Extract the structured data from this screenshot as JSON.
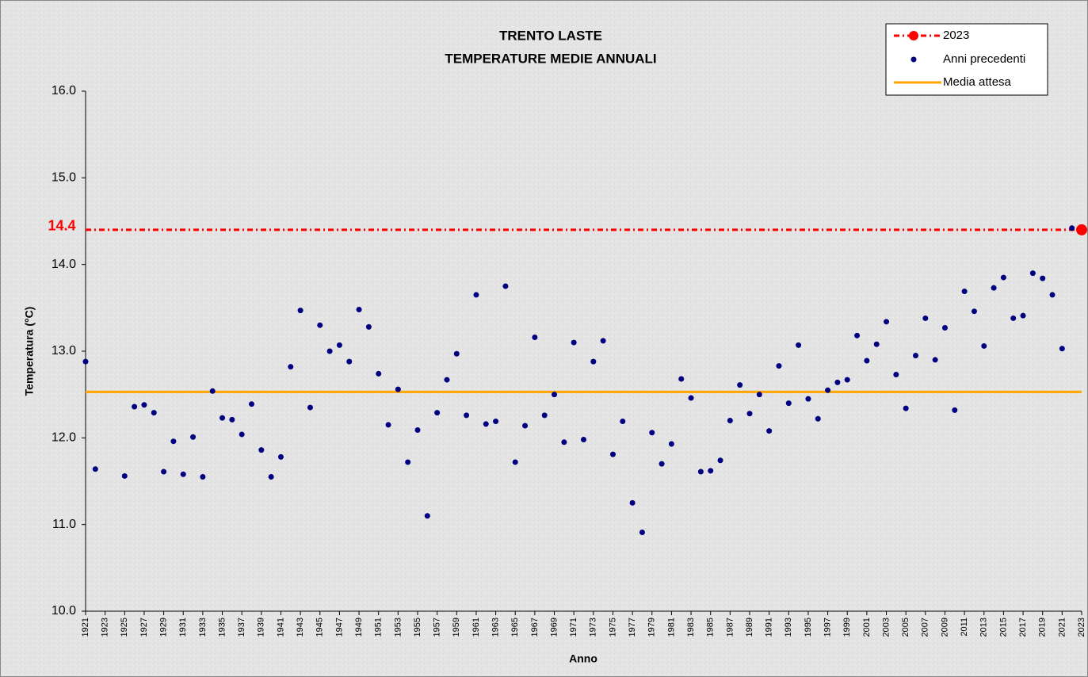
{
  "chart_data": {
    "type": "scatter",
    "title": "TRENTO LASTE",
    "subtitle": "TEMPERATURE MEDIE ANNUALI",
    "x_label": "Anno",
    "y_label": "Temperatura (°C)",
    "xlim": [
      1921,
      2023
    ],
    "ylim": [
      10,
      16
    ],
    "xticks": [
      1921,
      1923,
      1925,
      1927,
      1929,
      1931,
      1933,
      1935,
      1937,
      1939,
      1941,
      1943,
      1945,
      1947,
      1949,
      1951,
      1953,
      1955,
      1957,
      1959,
      1961,
      1963,
      1965,
      1967,
      1969,
      1971,
      1973,
      1975,
      1977,
      1979,
      1981,
      1983,
      1985,
      1987,
      1989,
      1991,
      1993,
      1995,
      1997,
      1999,
      2001,
      2003,
      2005,
      2007,
      2009,
      2011,
      2013,
      2015,
      2017,
      2019,
      2021,
      2023
    ],
    "yticks": [
      {
        "value": 10,
        "label": "10.0"
      },
      {
        "value": 11,
        "label": "11.0"
      },
      {
        "value": 12,
        "label": "12.0"
      },
      {
        "value": 13,
        "label": "13.0"
      },
      {
        "value": 14,
        "label": "14.0"
      },
      {
        "value": 15,
        "label": "15.0"
      },
      {
        "value": 16,
        "label": "16.0"
      }
    ],
    "series": [
      {
        "name": "Anni precedenti",
        "color": "#000080",
        "x": [
          1921,
          1922,
          1923,
          1924,
          1925,
          1926,
          1927,
          1928,
          1929,
          1930,
          1931,
          1932,
          1933,
          1934,
          1935,
          1936,
          1937,
          1938,
          1939,
          1940,
          1941,
          1942,
          1943,
          1944,
          1945,
          1946,
          1947,
          1948,
          1949,
          1950,
          1951,
          1952,
          1953,
          1954,
          1955,
          1956,
          1957,
          1958,
          1959,
          1960,
          1961,
          1962,
          1963,
          1964,
          1965,
          1966,
          1967,
          1968,
          1969,
          1970,
          1971,
          1972,
          1973,
          1974,
          1975,
          1976,
          1977,
          1978,
          1979,
          1980,
          1981,
          1982,
          1983,
          1984,
          1985,
          1986,
          1987,
          1988,
          1989,
          1990,
          1991,
          1992,
          1993,
          1994,
          1995,
          1996,
          1997,
          1998,
          1999,
          2000,
          2001,
          2002,
          2003,
          2004,
          2005,
          2006,
          2007,
          2008,
          2009,
          2010,
          2011,
          2012,
          2013,
          2014,
          2015,
          2016,
          2017,
          2018,
          2019,
          2020,
          2021,
          2022
        ],
        "values": [
          12.88,
          11.64,
          null,
          null,
          11.56,
          12.36,
          12.38,
          12.29,
          11.61,
          11.96,
          11.58,
          12.01,
          11.55,
          12.54,
          12.23,
          12.21,
          12.04,
          12.39,
          11.86,
          11.55,
          11.78,
          12.82,
          13.47,
          12.35,
          13.3,
          13.0,
          13.07,
          12.88,
          13.48,
          13.28,
          12.74,
          12.15,
          12.56,
          11.72,
          12.09,
          11.1,
          12.29,
          12.67,
          12.97,
          12.26,
          13.65,
          12.16,
          12.19,
          13.75,
          11.72,
          12.14,
          13.16,
          12.26,
          12.5,
          11.95,
          13.1,
          11.98,
          12.88,
          13.12,
          11.81,
          12.19,
          11.25,
          10.91,
          12.06,
          11.7,
          11.93,
          12.68,
          12.46,
          11.61,
          11.62,
          11.74,
          12.2,
          12.61,
          12.28,
          12.5,
          12.08,
          12.83,
          12.4,
          13.07,
          12.45,
          12.22,
          12.55,
          12.64,
          12.67,
          13.18,
          12.89,
          13.08,
          13.34,
          12.73,
          12.34,
          12.95,
          13.38,
          12.9,
          13.27,
          12.32,
          13.69,
          13.46,
          13.06,
          13.73,
          13.85,
          13.38,
          13.41,
          13.9,
          13.84,
          13.65,
          13.03,
          14.42
        ]
      }
    ],
    "highlight": {
      "name": "2023",
      "x": 2023,
      "value": 14.4,
      "value_label": "14.4",
      "color": "#ff0000"
    },
    "reference_line": {
      "name": "Media attesa",
      "value": 12.53,
      "color": "#ffa500"
    }
  }
}
